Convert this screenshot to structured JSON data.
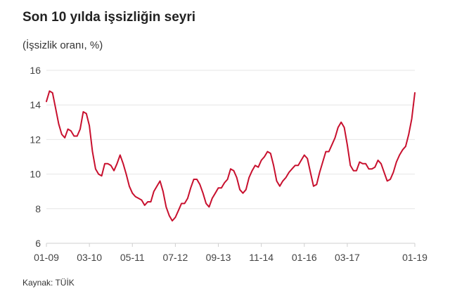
{
  "chart_data": {
    "type": "line",
    "title": "Son 10 yılda işsizliğin seyri",
    "subtitle": "(İşsizlik oranı, %)",
    "source": "Kaynak: TÜİK",
    "ylim": [
      6,
      16
    ],
    "yticks": [
      "16",
      "14",
      "12",
      "10",
      "8",
      "6"
    ],
    "xticks": [
      "01-09",
      "03-10",
      "05-11",
      "07-12",
      "09-13",
      "11-14",
      "01-16",
      "03-17",
      "01-19"
    ],
    "xtick_index": [
      0,
      14,
      28,
      42,
      56,
      70,
      84,
      98,
      120
    ],
    "grid": "horizontal",
    "line_color": "#c8102e",
    "series": [
      {
        "values": [
          14.2,
          14.8,
          14.7,
          13.8,
          12.9,
          12.3,
          12.1,
          12.6,
          12.5,
          12.2,
          12.2,
          12.6,
          13.6,
          13.5,
          12.8,
          11.3,
          10.3,
          10.0,
          9.9,
          10.6,
          10.6,
          10.5,
          10.2,
          10.6,
          11.1,
          10.6,
          10.0,
          9.3,
          8.9,
          8.7,
          8.6,
          8.5,
          8.2,
          8.4,
          8.4,
          9.0,
          9.3,
          9.6,
          9.0,
          8.1,
          7.6,
          7.3,
          7.5,
          7.9,
          8.3,
          8.3,
          8.6,
          9.2,
          9.7,
          9.7,
          9.4,
          8.9,
          8.3,
          8.1,
          8.6,
          8.9,
          9.2,
          9.2,
          9.5,
          9.7,
          10.3,
          10.2,
          9.8,
          9.1,
          8.9,
          9.1,
          9.8,
          10.2,
          10.5,
          10.4,
          10.8,
          11.0,
          11.3,
          11.2,
          10.5,
          9.6,
          9.3,
          9.6,
          9.8,
          10.1,
          10.3,
          10.5,
          10.5,
          10.8,
          11.1,
          10.9,
          10.1,
          9.3,
          9.4,
          10.1,
          10.7,
          11.3,
          11.3,
          11.7,
          12.1,
          12.7,
          13.0,
          12.7,
          11.7,
          10.5,
          10.2,
          10.2,
          10.7,
          10.6,
          10.6,
          10.3,
          10.3,
          10.4,
          10.8,
          10.6,
          10.1,
          9.6,
          9.7,
          10.1,
          10.7,
          11.1,
          11.4,
          11.6,
          12.3,
          13.2,
          14.7
        ]
      }
    ]
  }
}
